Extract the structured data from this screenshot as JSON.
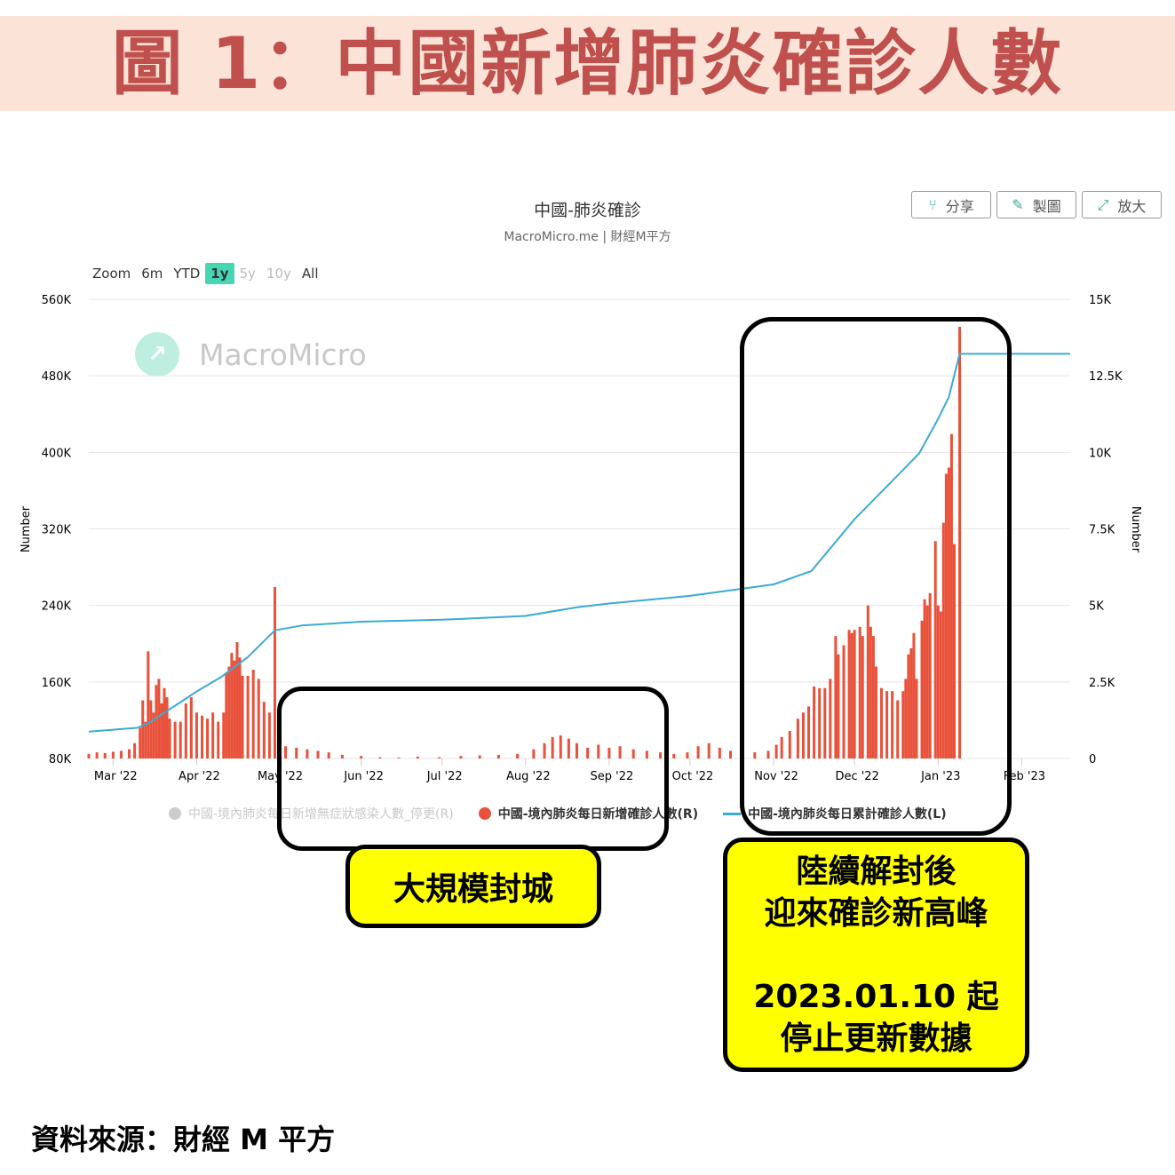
{
  "header": {
    "title": "圖 1：中國新增肺炎確診人數"
  },
  "chart_header": {
    "title": "中國-肺炎確診",
    "subtitle": "MacroMicro.me | 財經M平方"
  },
  "toolbar": {
    "share_label": "分享",
    "share_icon": "share-icon",
    "draw_label": "製圖",
    "draw_icon": "pencil-icon",
    "enlarge_label": "放大",
    "enlarge_icon": "expand-icon"
  },
  "zoom": {
    "label": "Zoom",
    "options": [
      "6m",
      "YTD",
      "1y",
      "5y",
      "10y",
      "All"
    ],
    "selected": "1y",
    "disabled": [
      "5y",
      "10y"
    ]
  },
  "watermark": {
    "text": "MacroMicro"
  },
  "annotations": {
    "lockdown": "大規模封城",
    "reopen_line1": "陸續解封後",
    "reopen_line2": "迎來確診新高峰",
    "stop_line1": "2023.01.10 起",
    "stop_line2": "停止更新數據"
  },
  "source": "資料來源：財經 M 平方",
  "colors": {
    "bars": "#e8513a",
    "line": "#3aaad6",
    "disabled_series": "#cccccc",
    "title_red": "#c0504d",
    "header_bg": "#fbe4d7",
    "highlight": "#ffff00"
  },
  "chart_data": {
    "type": "bar+line",
    "title": "中國-肺炎確診",
    "subtitle": "MacroMicro.me | 財經M平方",
    "xlim": [
      "2022-02-20",
      "2023-02-19"
    ],
    "x_ticks": [
      {
        "date": "2022-03-01",
        "label": "Mar '22"
      },
      {
        "date": "2022-04-01",
        "label": "Apr '22"
      },
      {
        "date": "2022-05-01",
        "label": "May '22"
      },
      {
        "date": "2022-06-01",
        "label": "Jun '22"
      },
      {
        "date": "2022-07-01",
        "label": "Jul '22"
      },
      {
        "date": "2022-08-01",
        "label": "Aug '22"
      },
      {
        "date": "2022-09-01",
        "label": "Sep '22"
      },
      {
        "date": "2022-10-01",
        "label": "Oct '22"
      },
      {
        "date": "2022-11-01",
        "label": "Nov '22"
      },
      {
        "date": "2022-12-01",
        "label": "Dec '22"
      },
      {
        "date": "2023-01-01",
        "label": "Jan '23"
      },
      {
        "date": "2023-02-01",
        "label": "Feb '23"
      }
    ],
    "left_axis": {
      "label": "Number",
      "ylim": [
        80000,
        560000
      ],
      "tick_labels": [
        "560K",
        "480K",
        "400K",
        "320K",
        "240K",
        "160K",
        "80K"
      ]
    },
    "right_axis": {
      "label": "Number",
      "ylim": [
        0,
        15000
      ],
      "tick_labels": [
        "15K",
        "12.5K",
        "10K",
        "7.5K",
        "5K",
        "2.5K",
        "0"
      ]
    },
    "grid": true,
    "legend_position": "bottom",
    "legend": [
      {
        "name": "中國-境內肺炎每日新增無症狀感染人數_停更(R)",
        "marker": "dot",
        "color": "#cccccc",
        "enabled": false
      },
      {
        "name": "中國-境內肺炎每日新增確診人數(R)",
        "marker": "dot",
        "color": "#e8513a",
        "enabled": true
      },
      {
        "name": "中國-境內肺炎每日累計確診人數(L)",
        "marker": "line",
        "color": "#3aaad6",
        "enabled": true
      }
    ],
    "series": [
      {
        "name": "中國-境內肺炎每日新增確診人數(R)",
        "type": "bar",
        "axis": "right",
        "points": [
          [
            "2022-02-20",
            150
          ],
          [
            "2022-02-23",
            200
          ],
          [
            "2022-02-26",
            180
          ],
          [
            "2022-03-01",
            220
          ],
          [
            "2022-03-04",
            250
          ],
          [
            "2022-03-07",
            300
          ],
          [
            "2022-03-09",
            500
          ],
          [
            "2022-03-11",
            1000
          ],
          [
            "2022-03-12",
            1900
          ],
          [
            "2022-03-13",
            1200
          ],
          [
            "2022-03-14",
            3500
          ],
          [
            "2022-03-15",
            1900
          ],
          [
            "2022-03-16",
            1500
          ],
          [
            "2022-03-17",
            2400
          ],
          [
            "2022-03-18",
            2600
          ],
          [
            "2022-03-19",
            1800
          ],
          [
            "2022-03-20",
            2300
          ],
          [
            "2022-03-21",
            2000
          ],
          [
            "2022-03-22",
            1300
          ],
          [
            "2022-03-24",
            1200
          ],
          [
            "2022-03-26",
            1200
          ],
          [
            "2022-03-28",
            1800
          ],
          [
            "2022-03-30",
            2000
          ],
          [
            "2022-04-01",
            1500
          ],
          [
            "2022-04-03",
            1400
          ],
          [
            "2022-04-05",
            1300
          ],
          [
            "2022-04-07",
            1500
          ],
          [
            "2022-04-09",
            1200
          ],
          [
            "2022-04-11",
            1500
          ],
          [
            "2022-04-12",
            2800
          ],
          [
            "2022-04-13",
            3000
          ],
          [
            "2022-04-14",
            3450
          ],
          [
            "2022-04-15",
            3200
          ],
          [
            "2022-04-16",
            3800
          ],
          [
            "2022-04-17",
            3300
          ],
          [
            "2022-04-18",
            2700
          ],
          [
            "2022-04-20",
            2700
          ],
          [
            "2022-04-22",
            2900
          ],
          [
            "2022-04-24",
            2600
          ],
          [
            "2022-04-26",
            1850
          ],
          [
            "2022-04-28",
            1500
          ],
          [
            "2022-04-30",
            5600
          ],
          [
            "2022-05-02",
            850
          ],
          [
            "2022-05-04",
            400
          ],
          [
            "2022-05-08",
            350
          ],
          [
            "2022-05-12",
            300
          ],
          [
            "2022-05-16",
            250
          ],
          [
            "2022-05-20",
            200
          ],
          [
            "2022-05-25",
            120
          ],
          [
            "2022-06-01",
            80
          ],
          [
            "2022-06-08",
            40
          ],
          [
            "2022-06-15",
            30
          ],
          [
            "2022-06-22",
            60
          ],
          [
            "2022-06-30",
            40
          ],
          [
            "2022-07-08",
            80
          ],
          [
            "2022-07-15",
            100
          ],
          [
            "2022-07-22",
            120
          ],
          [
            "2022-07-29",
            150
          ],
          [
            "2022-08-04",
            300
          ],
          [
            "2022-08-08",
            500
          ],
          [
            "2022-08-11",
            700
          ],
          [
            "2022-08-14",
            750
          ],
          [
            "2022-08-17",
            650
          ],
          [
            "2022-08-20",
            500
          ],
          [
            "2022-08-24",
            350
          ],
          [
            "2022-08-28",
            450
          ],
          [
            "2022-09-01",
            350
          ],
          [
            "2022-09-05",
            400
          ],
          [
            "2022-09-10",
            300
          ],
          [
            "2022-09-15",
            250
          ],
          [
            "2022-09-20",
            200
          ],
          [
            "2022-09-25",
            150
          ],
          [
            "2022-09-30",
            200
          ],
          [
            "2022-10-04",
            400
          ],
          [
            "2022-10-08",
            500
          ],
          [
            "2022-10-12",
            350
          ],
          [
            "2022-10-16",
            250
          ],
          [
            "2022-10-20",
            150
          ],
          [
            "2022-10-25",
            200
          ],
          [
            "2022-10-30",
            250
          ],
          [
            "2022-11-02",
            450
          ],
          [
            "2022-11-04",
            700
          ],
          [
            "2022-11-07",
            900
          ],
          [
            "2022-11-10",
            1300
          ],
          [
            "2022-11-12",
            1500
          ],
          [
            "2022-11-14",
            1700
          ],
          [
            "2022-11-16",
            2350
          ],
          [
            "2022-11-18",
            2300
          ],
          [
            "2022-11-20",
            2300
          ],
          [
            "2022-11-22",
            2600
          ],
          [
            "2022-11-24",
            4000
          ],
          [
            "2022-11-25",
            3400
          ],
          [
            "2022-11-27",
            3700
          ],
          [
            "2022-11-29",
            4200
          ],
          [
            "2022-11-30",
            4100
          ],
          [
            "2022-12-01",
            4200
          ],
          [
            "2022-12-03",
            4300
          ],
          [
            "2022-12-04",
            4000
          ],
          [
            "2022-12-06",
            5000
          ],
          [
            "2022-12-07",
            4300
          ],
          [
            "2022-12-08",
            4000
          ],
          [
            "2022-12-09",
            3000
          ],
          [
            "2022-12-11",
            2300
          ],
          [
            "2022-12-13",
            2200
          ],
          [
            "2022-12-15",
            2200
          ],
          [
            "2022-12-17",
            1900
          ],
          [
            "2022-12-19",
            2200
          ],
          [
            "2022-12-20",
            2600
          ],
          [
            "2022-12-21",
            3400
          ],
          [
            "2022-12-22",
            3600
          ],
          [
            "2022-12-23",
            4100
          ],
          [
            "2022-12-24",
            2600
          ],
          [
            "2022-12-26",
            4500
          ],
          [
            "2022-12-27",
            5200
          ],
          [
            "2022-12-28",
            5000
          ],
          [
            "2022-12-29",
            5400
          ],
          [
            "2022-12-31",
            7100
          ],
          [
            "2023-01-01",
            5000
          ],
          [
            "2023-01-02",
            4800
          ],
          [
            "2023-01-03",
            7700
          ],
          [
            "2023-01-04",
            9300
          ],
          [
            "2023-01-05",
            9500
          ],
          [
            "2023-01-06",
            10600
          ],
          [
            "2023-01-07",
            7000
          ],
          [
            "2023-01-09",
            14100
          ]
        ]
      },
      {
        "name": "中國-境內肺炎每日累計確診人數(L)",
        "type": "line",
        "axis": "left",
        "points": [
          [
            "2022-02-20",
            108000
          ],
          [
            "2022-03-10",
            112000
          ],
          [
            "2022-03-15",
            118000
          ],
          [
            "2022-03-20",
            128000
          ],
          [
            "2022-03-25",
            137000
          ],
          [
            "2022-04-01",
            150000
          ],
          [
            "2022-04-10",
            165000
          ],
          [
            "2022-04-20",
            186000
          ],
          [
            "2022-04-30",
            214000
          ],
          [
            "2022-05-10",
            219000
          ],
          [
            "2022-06-01",
            223000
          ],
          [
            "2022-07-01",
            225000
          ],
          [
            "2022-08-01",
            229000
          ],
          [
            "2022-08-20",
            238000
          ],
          [
            "2022-09-01",
            242000
          ],
          [
            "2022-10-01",
            250000
          ],
          [
            "2022-11-01",
            262000
          ],
          [
            "2022-11-15",
            276000
          ],
          [
            "2022-12-01",
            330000
          ],
          [
            "2022-12-15",
            370000
          ],
          [
            "2022-12-25",
            399000
          ],
          [
            "2023-01-01",
            435000
          ],
          [
            "2023-01-05",
            458000
          ],
          [
            "2023-01-09",
            503000
          ],
          [
            "2023-02-19",
            503000
          ]
        ]
      }
    ]
  }
}
